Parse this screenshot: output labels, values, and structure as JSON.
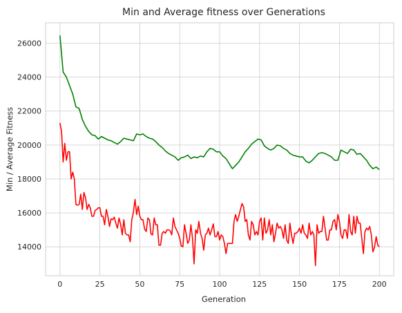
{
  "chart_data": {
    "type": "line",
    "title": "Min and Average fitness over Generations",
    "xlabel": "Generation",
    "ylabel": "Min / Average Fitness",
    "xlim": [
      -9,
      209
    ],
    "ylim": [
      12300,
      27200
    ],
    "xticks": [
      0,
      25,
      50,
      75,
      100,
      125,
      150,
      175,
      200
    ],
    "yticks": [
      14000,
      16000,
      18000,
      20000,
      22000,
      24000,
      26000
    ],
    "grid": true,
    "legend": "none",
    "series": [
      {
        "color": "#008000",
        "x": [
          0,
          2,
          4,
          6,
          8,
          10,
          12,
          14,
          16,
          18,
          20,
          22,
          24,
          26,
          28,
          30,
          32,
          34,
          36,
          38,
          40,
          42,
          44,
          46,
          48,
          50,
          52,
          54,
          56,
          58,
          60,
          62,
          64,
          66,
          68,
          70,
          72,
          74,
          76,
          78,
          80,
          82,
          84,
          86,
          88,
          90,
          92,
          94,
          96,
          98,
          100,
          102,
          104,
          106,
          108,
          110,
          112,
          114,
          116,
          118,
          120,
          122,
          124,
          126,
          128,
          130,
          132,
          134,
          136,
          138,
          140,
          142,
          144,
          146,
          148,
          150,
          152,
          154,
          156,
          158,
          160,
          162,
          164,
          166,
          168,
          170,
          172,
          174,
          176,
          178,
          180,
          182,
          184,
          186,
          188,
          190,
          192,
          194,
          196,
          198,
          200
        ],
        "values": [
          26450,
          24300,
          24000,
          23500,
          23000,
          22250,
          22150,
          21500,
          21100,
          20800,
          20600,
          20550,
          20350,
          20500,
          20400,
          20300,
          20250,
          20150,
          20050,
          20200,
          20400,
          20350,
          20300,
          20250,
          20650,
          20600,
          20650,
          20500,
          20400,
          20350,
          20200,
          20000,
          19850,
          19650,
          19500,
          19400,
          19300,
          19100,
          19250,
          19300,
          19400,
          19200,
          19300,
          19250,
          19350,
          19300,
          19600,
          19800,
          19750,
          19600,
          19600,
          19350,
          19200,
          18900,
          18600,
          18800,
          19000,
          19300,
          19600,
          19800,
          20050,
          20200,
          20350,
          20300,
          19950,
          19800,
          19700,
          19800,
          20000,
          19950,
          19800,
          19700,
          19500,
          19400,
          19350,
          19300,
          19300,
          19050,
          18950,
          19100,
          19300,
          19500,
          19550,
          19500,
          19400,
          19300,
          19100,
          19100,
          19700,
          19600,
          19500,
          19750,
          19700,
          19450,
          19500,
          19300,
          19100,
          18800,
          18600,
          18700,
          18550
        ]
      },
      {
        "color": "#ff0000",
        "x": [
          0,
          1,
          2,
          3,
          4,
          5,
          6,
          7,
          8,
          9,
          10,
          11,
          12,
          13,
          14,
          15,
          16,
          17,
          18,
          19,
          20,
          21,
          22,
          23,
          24,
          25,
          26,
          27,
          28,
          29,
          30,
          31,
          32,
          33,
          34,
          35,
          36,
          37,
          38,
          39,
          40,
          41,
          42,
          43,
          44,
          45,
          46,
          47,
          48,
          49,
          50,
          51,
          52,
          53,
          54,
          55,
          56,
          57,
          58,
          59,
          60,
          61,
          62,
          63,
          64,
          65,
          66,
          67,
          68,
          69,
          70,
          71,
          72,
          73,
          74,
          75,
          76,
          77,
          78,
          79,
          80,
          81,
          82,
          83,
          84,
          85,
          86,
          87,
          88,
          89,
          90,
          91,
          92,
          93,
          94,
          95,
          96,
          97,
          98,
          99,
          100,
          101,
          102,
          103,
          104,
          105,
          106,
          107,
          108,
          109,
          110,
          111,
          112,
          113,
          114,
          115,
          116,
          117,
          118,
          119,
          120,
          121,
          122,
          123,
          124,
          125,
          126,
          127,
          128,
          129,
          130,
          131,
          132,
          133,
          134,
          135,
          136,
          137,
          138,
          139,
          140,
          141,
          142,
          143,
          144,
          145,
          146,
          147,
          148,
          149,
          150,
          151,
          152,
          153,
          154,
          155,
          156,
          157,
          158,
          159,
          160,
          161,
          162,
          163,
          164,
          165,
          166,
          167,
          168,
          169,
          170,
          171,
          172,
          173,
          174,
          175,
          176,
          177,
          178,
          179,
          180,
          181,
          182,
          183,
          184,
          185,
          186,
          187,
          188,
          189,
          190,
          191,
          192,
          193,
          194,
          195,
          196,
          197,
          198,
          199,
          200
        ],
        "values": [
          21300,
          20800,
          19000,
          20100,
          19100,
          19600,
          19600,
          18000,
          18400,
          18000,
          16500,
          16450,
          16500,
          17100,
          16200,
          17200,
          16900,
          16200,
          16500,
          16300,
          15800,
          15800,
          16150,
          16200,
          16300,
          16300,
          15800,
          15800,
          15300,
          16200,
          15800,
          15200,
          15650,
          15600,
          15750,
          15400,
          15100,
          15700,
          15300,
          14700,
          15600,
          14800,
          14700,
          14700,
          14300,
          15600,
          16050,
          16800,
          15900,
          16400,
          15800,
          15600,
          15600,
          15050,
          14900,
          15700,
          15600,
          14750,
          14700,
          15700,
          15300,
          15300,
          14100,
          14100,
          14800,
          14900,
          14800,
          15000,
          15000,
          14950,
          14700,
          15700,
          15200,
          15000,
          14800,
          14500,
          14050,
          14000,
          15300,
          14800,
          14200,
          14400,
          15300,
          14500,
          13000,
          15000,
          14800,
          15500,
          14800,
          14500,
          13800,
          14700,
          14800,
          15100,
          14700,
          15000,
          15350,
          14600,
          14600,
          14900,
          14400,
          14700,
          14600,
          14200,
          13600,
          14200,
          14200,
          14200,
          14200,
          15500,
          15900,
          15500,
          15800,
          16200,
          16550,
          16350,
          15500,
          15600,
          14700,
          14400,
          15500,
          15300,
          14700,
          14900,
          14700,
          15500,
          15700,
          14400,
          15700,
          14800,
          15000,
          15600,
          14700,
          15300,
          14300,
          14800,
          15400,
          15100,
          15200,
          15000,
          14500,
          15300,
          14400,
          14200,
          15400,
          14700,
          14200,
          14800,
          14800,
          14900,
          15100,
          14800,
          15300,
          14800,
          14700,
          14500,
          15400,
          14700,
          14900,
          14700,
          12900,
          15300,
          14800,
          14900,
          14900,
          15800,
          15100,
          14400,
          14400,
          15000,
          15000,
          15500,
          15600,
          15000,
          15900,
          15500,
          14700,
          14500,
          15000,
          15000,
          14500,
          15900,
          14900,
          14700,
          15800,
          14800,
          15800,
          15400,
          15400,
          14500,
          13600,
          14900,
          15100,
          15000,
          15200,
          14700,
          13700,
          14000,
          14600,
          14100,
          14000
        ]
      }
    ]
  }
}
